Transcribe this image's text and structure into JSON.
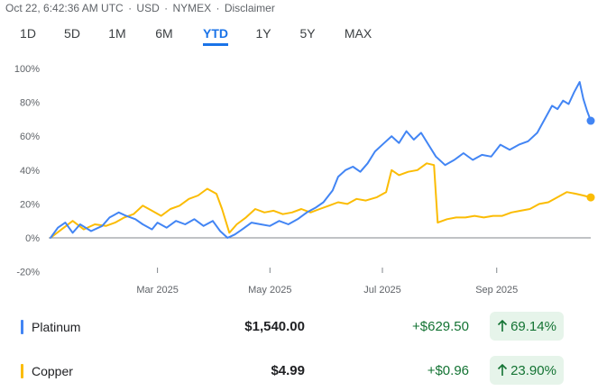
{
  "header": {
    "timestamp": "Oct 22, 6:42:36 AM UTC",
    "currency": "USD",
    "exchange": "NYMEX",
    "disclaimer": "Disclaimer",
    "separator": "·"
  },
  "range_tabs": [
    {
      "label": "1D",
      "active": false
    },
    {
      "label": "5D",
      "active": false
    },
    {
      "label": "1M",
      "active": false
    },
    {
      "label": "6M",
      "active": false
    },
    {
      "label": "YTD",
      "active": true
    },
    {
      "label": "1Y",
      "active": false
    },
    {
      "label": "5Y",
      "active": false
    },
    {
      "label": "MAX",
      "active": false
    }
  ],
  "colors": {
    "platinum": "#4285f4",
    "copper": "#fbbc04",
    "gain": "#137333",
    "gain_bg": "#e6f4ea",
    "active_tab": "#1a73e8"
  },
  "chart_data": {
    "type": "line",
    "title": "",
    "xlabel": "",
    "ylabel": "",
    "ylim": [
      -20,
      100
    ],
    "y_ticks": [
      "100%",
      "80%",
      "60%",
      "40%",
      "20%",
      "0%",
      "-20%"
    ],
    "y_tick_values": [
      100,
      80,
      60,
      40,
      20,
      0,
      -20
    ],
    "x_ticks": [
      "Mar 2025",
      "May 2025",
      "Jul 2025",
      "Sep 2025"
    ],
    "x_tick_dates": [
      "2025-03-01",
      "2025-05-01",
      "2025-07-01",
      "2025-09-01"
    ],
    "x_range": [
      "2025-01-01",
      "2025-10-22"
    ],
    "grid": false,
    "baseline": 0,
    "series": [
      {
        "name": "Platinum",
        "color": "#4285f4",
        "points": [
          [
            "2025-01-02",
            0
          ],
          [
            "2025-01-06",
            6
          ],
          [
            "2025-01-10",
            9
          ],
          [
            "2025-01-14",
            3
          ],
          [
            "2025-01-18",
            8
          ],
          [
            "2025-01-24",
            4
          ],
          [
            "2025-01-30",
            7
          ],
          [
            "2025-02-03",
            12
          ],
          [
            "2025-02-08",
            15
          ],
          [
            "2025-02-12",
            13
          ],
          [
            "2025-02-17",
            11
          ],
          [
            "2025-02-21",
            8
          ],
          [
            "2025-02-26",
            5
          ],
          [
            "2025-03-01",
            9
          ],
          [
            "2025-03-06",
            6
          ],
          [
            "2025-03-11",
            10
          ],
          [
            "2025-03-16",
            8
          ],
          [
            "2025-03-21",
            11
          ],
          [
            "2025-03-26",
            7
          ],
          [
            "2025-03-31",
            10
          ],
          [
            "2025-04-04",
            4
          ],
          [
            "2025-04-08",
            0
          ],
          [
            "2025-04-12",
            2
          ],
          [
            "2025-04-16",
            5
          ],
          [
            "2025-04-21",
            9
          ],
          [
            "2025-04-26",
            8
          ],
          [
            "2025-05-01",
            7
          ],
          [
            "2025-05-06",
            10
          ],
          [
            "2025-05-11",
            8
          ],
          [
            "2025-05-16",
            11
          ],
          [
            "2025-05-21",
            15
          ],
          [
            "2025-05-26",
            18
          ],
          [
            "2025-05-30",
            21
          ],
          [
            "2025-06-04",
            28
          ],
          [
            "2025-06-07",
            36
          ],
          [
            "2025-06-11",
            40
          ],
          [
            "2025-06-15",
            42
          ],
          [
            "2025-06-19",
            39
          ],
          [
            "2025-06-23",
            44
          ],
          [
            "2025-06-27",
            51
          ],
          [
            "2025-07-02",
            56
          ],
          [
            "2025-07-06",
            60
          ],
          [
            "2025-07-10",
            56
          ],
          [
            "2025-07-14",
            63
          ],
          [
            "2025-07-18",
            58
          ],
          [
            "2025-07-22",
            62
          ],
          [
            "2025-07-26",
            55
          ],
          [
            "2025-07-30",
            48
          ],
          [
            "2025-08-04",
            43
          ],
          [
            "2025-08-09",
            46
          ],
          [
            "2025-08-14",
            50
          ],
          [
            "2025-08-19",
            46
          ],
          [
            "2025-08-24",
            49
          ],
          [
            "2025-08-29",
            48
          ],
          [
            "2025-09-03",
            55
          ],
          [
            "2025-09-08",
            52
          ],
          [
            "2025-09-13",
            55
          ],
          [
            "2025-09-18",
            57
          ],
          [
            "2025-09-23",
            62
          ],
          [
            "2025-09-27",
            70
          ],
          [
            "2025-10-01",
            78
          ],
          [
            "2025-10-04",
            76
          ],
          [
            "2025-10-07",
            81
          ],
          [
            "2025-10-10",
            79
          ],
          [
            "2025-10-13",
            86
          ],
          [
            "2025-10-16",
            92
          ],
          [
            "2025-10-18",
            82
          ],
          [
            "2025-10-20",
            75
          ],
          [
            "2025-10-22",
            69.14
          ]
        ]
      },
      {
        "name": "Copper",
        "color": "#fbbc04",
        "points": [
          [
            "2025-01-02",
            0
          ],
          [
            "2025-01-08",
            5
          ],
          [
            "2025-01-14",
            10
          ],
          [
            "2025-01-20",
            5
          ],
          [
            "2025-01-26",
            8
          ],
          [
            "2025-02-01",
            7
          ],
          [
            "2025-02-06",
            9
          ],
          [
            "2025-02-11",
            12
          ],
          [
            "2025-02-16",
            14
          ],
          [
            "2025-02-21",
            19
          ],
          [
            "2025-02-26",
            16
          ],
          [
            "2025-03-03",
            13
          ],
          [
            "2025-03-08",
            17
          ],
          [
            "2025-03-13",
            19
          ],
          [
            "2025-03-18",
            23
          ],
          [
            "2025-03-23",
            25
          ],
          [
            "2025-03-28",
            29
          ],
          [
            "2025-04-02",
            26
          ],
          [
            "2025-04-05",
            17
          ],
          [
            "2025-04-09",
            3
          ],
          [
            "2025-04-13",
            8
          ],
          [
            "2025-04-18",
            12
          ],
          [
            "2025-04-23",
            17
          ],
          [
            "2025-04-28",
            15
          ],
          [
            "2025-05-03",
            16
          ],
          [
            "2025-05-08",
            14
          ],
          [
            "2025-05-13",
            15
          ],
          [
            "2025-05-18",
            17
          ],
          [
            "2025-05-23",
            15
          ],
          [
            "2025-05-28",
            17
          ],
          [
            "2025-06-02",
            19
          ],
          [
            "2025-06-07",
            21
          ],
          [
            "2025-06-12",
            20
          ],
          [
            "2025-06-17",
            23
          ],
          [
            "2025-06-22",
            22
          ],
          [
            "2025-06-28",
            24
          ],
          [
            "2025-07-03",
            27
          ],
          [
            "2025-07-06",
            40
          ],
          [
            "2025-07-10",
            37
          ],
          [
            "2025-07-15",
            39
          ],
          [
            "2025-07-20",
            40
          ],
          [
            "2025-07-25",
            44
          ],
          [
            "2025-07-29",
            43
          ],
          [
            "2025-07-31",
            9
          ],
          [
            "2025-08-05",
            11
          ],
          [
            "2025-08-10",
            12
          ],
          [
            "2025-08-15",
            12
          ],
          [
            "2025-08-20",
            13
          ],
          [
            "2025-08-25",
            12
          ],
          [
            "2025-08-30",
            13
          ],
          [
            "2025-09-04",
            13
          ],
          [
            "2025-09-09",
            15
          ],
          [
            "2025-09-14",
            16
          ],
          [
            "2025-09-19",
            17
          ],
          [
            "2025-09-24",
            20
          ],
          [
            "2025-09-29",
            21
          ],
          [
            "2025-10-04",
            24
          ],
          [
            "2025-10-09",
            27
          ],
          [
            "2025-10-14",
            26
          ],
          [
            "2025-10-18",
            25
          ],
          [
            "2025-10-22",
            23.9
          ]
        ]
      }
    ]
  },
  "legend": [
    {
      "name": "Platinum",
      "color": "#4285f4",
      "price": "$1,540.00",
      "change": "+$629.50",
      "percent": "69.14%",
      "direction_icon": "arrow-up-icon"
    },
    {
      "name": "Copper",
      "color": "#fbbc04",
      "price": "$4.99",
      "change": "+$0.96",
      "percent": "23.90%",
      "direction_icon": "arrow-up-icon"
    }
  ]
}
